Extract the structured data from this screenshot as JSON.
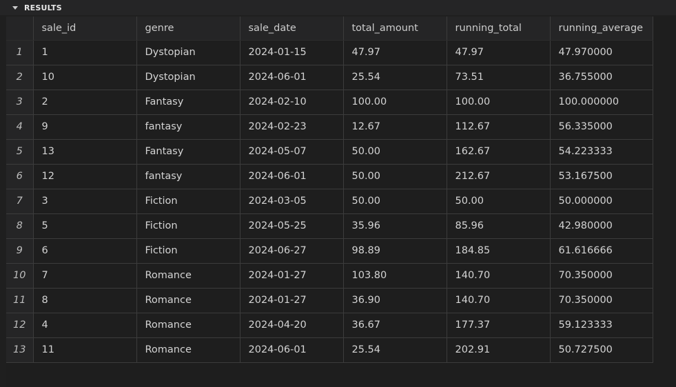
{
  "panel": {
    "title": "RESULTS"
  },
  "grid": {
    "columns": [
      "sale_id",
      "genre",
      "sale_date",
      "total_amount",
      "running_total",
      "running_average"
    ],
    "rows": [
      {
        "n": "1",
        "cells": [
          "1",
          "Dystopian",
          "2024-01-15",
          "47.97",
          "47.97",
          "47.970000"
        ]
      },
      {
        "n": "2",
        "cells": [
          "10",
          "Dystopian",
          "2024-06-01",
          "25.54",
          "73.51",
          "36.755000"
        ]
      },
      {
        "n": "3",
        "cells": [
          "2",
          "Fantasy",
          "2024-02-10",
          "100.00",
          "100.00",
          "100.000000"
        ]
      },
      {
        "n": "4",
        "cells": [
          "9",
          "fantasy",
          "2024-02-23",
          "12.67",
          "112.67",
          "56.335000"
        ]
      },
      {
        "n": "5",
        "cells": [
          "13",
          "Fantasy",
          "2024-05-07",
          "50.00",
          "162.67",
          "54.223333"
        ]
      },
      {
        "n": "6",
        "cells": [
          "12",
          "fantasy",
          "2024-06-01",
          "50.00",
          "212.67",
          "53.167500"
        ]
      },
      {
        "n": "7",
        "cells": [
          "3",
          "Fiction",
          "2024-03-05",
          "50.00",
          "50.00",
          "50.000000"
        ]
      },
      {
        "n": "8",
        "cells": [
          "5",
          "Fiction",
          "2024-05-25",
          "35.96",
          "85.96",
          "42.980000"
        ]
      },
      {
        "n": "9",
        "cells": [
          "6",
          "Fiction",
          "2024-06-27",
          "98.89",
          "184.85",
          "61.616666"
        ]
      },
      {
        "n": "10",
        "cells": [
          "7",
          "Romance",
          "2024-01-27",
          "103.80",
          "140.70",
          "70.350000"
        ]
      },
      {
        "n": "11",
        "cells": [
          "8",
          "Romance",
          "2024-01-27",
          "36.90",
          "140.70",
          "70.350000"
        ]
      },
      {
        "n": "12",
        "cells": [
          "4",
          "Romance",
          "2024-04-20",
          "36.67",
          "177.37",
          "59.123333"
        ]
      },
      {
        "n": "13",
        "cells": [
          "11",
          "Romance",
          "2024-06-01",
          "25.54",
          "202.91",
          "50.727500"
        ]
      }
    ]
  },
  "colors": {
    "background": "#1f1f1f",
    "header_bg": "#252526",
    "gridline": "#3c3c3c",
    "text": "#d4d4d4"
  }
}
